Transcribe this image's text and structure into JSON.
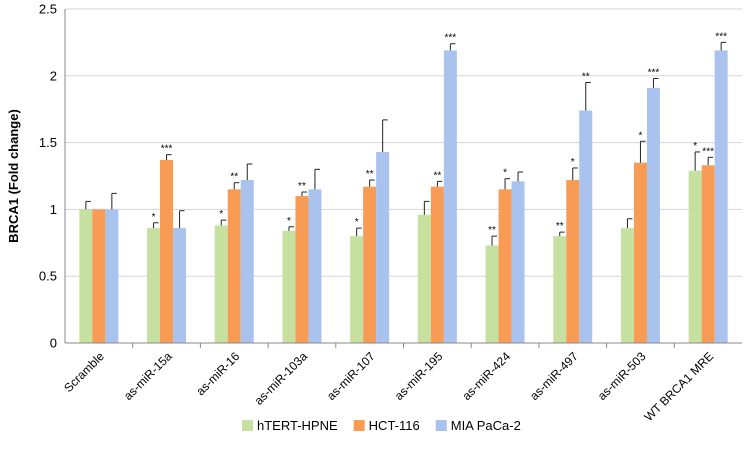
{
  "chart_data": {
    "type": "bar",
    "title": "",
    "xlabel": "",
    "ylabel": "BRCA1 (Fold change)",
    "ylim": [
      0,
      2.5
    ],
    "yticks": [
      "0",
      "0.5",
      "1",
      "1.5",
      "2",
      "2.5"
    ],
    "grid": true,
    "legend_position": "bottom",
    "categories": [
      "Scramble",
      "as-miR-15a",
      "as-miR-16",
      "as-miR-103a",
      "as-miR-107",
      "as-miR-195",
      "as-miR-424",
      "as-miR-497",
      "as-miR-503",
      "WT BRCA1 MRE"
    ],
    "series": [
      {
        "name": "hTERT-HPNE",
        "color": "#c6e0a0",
        "values": [
          1.0,
          0.86,
          0.88,
          0.84,
          0.8,
          0.96,
          0.73,
          0.8,
          0.86,
          1.29
        ],
        "errors": [
          0.06,
          0.04,
          0.04,
          0.03,
          0.06,
          0.1,
          0.07,
          0.03,
          0.07,
          0.14
        ],
        "significance": [
          "",
          "*",
          "*",
          "*",
          "*",
          "",
          "**",
          "**",
          "",
          "*"
        ]
      },
      {
        "name": "HCT-116",
        "color": "#f79b55",
        "values": [
          1.0,
          1.37,
          1.15,
          1.1,
          1.17,
          1.17,
          1.15,
          1.22,
          1.35,
          1.33
        ],
        "errors": [
          0.0,
          0.04,
          0.05,
          0.03,
          0.05,
          0.04,
          0.08,
          0.09,
          0.16,
          0.06
        ],
        "significance": [
          "",
          "***",
          "**",
          "**",
          "**",
          "**",
          "*",
          "*",
          "*",
          "***"
        ]
      },
      {
        "name": "MIA PaCa-2",
        "color": "#a9c2ee",
        "values": [
          1.0,
          0.86,
          1.22,
          1.15,
          1.43,
          2.19,
          1.21,
          1.74,
          1.91,
          2.19
        ],
        "errors": [
          0.12,
          0.13,
          0.12,
          0.15,
          0.24,
          0.05,
          0.07,
          0.21,
          0.07,
          0.06
        ],
        "significance": [
          "",
          "",
          "",
          "",
          "",
          "***",
          "",
          "**",
          "***",
          "***"
        ]
      }
    ]
  }
}
